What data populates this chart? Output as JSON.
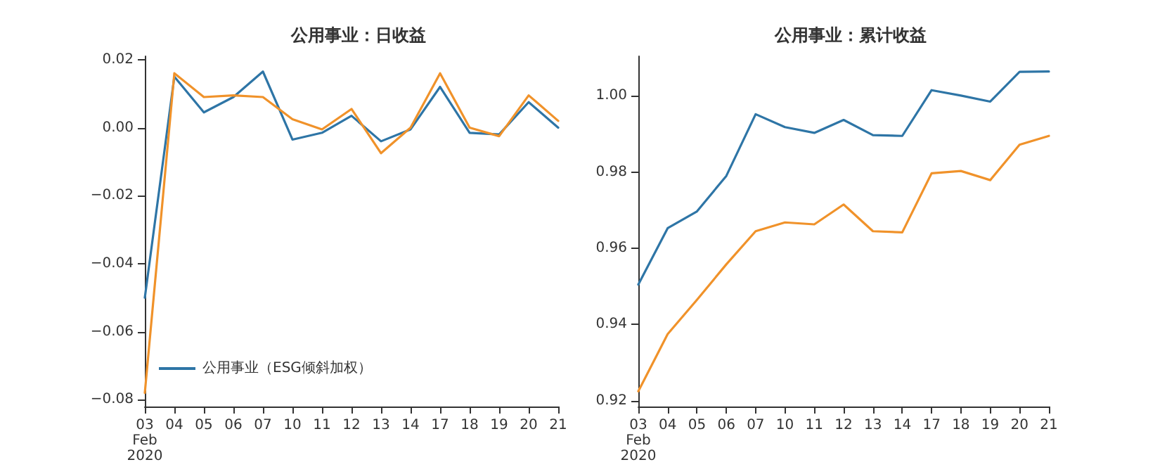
{
  "chart_data": [
    {
      "type": "line",
      "title": "公用事业：日收益",
      "categories": [
        "03\nFeb\n2020",
        "04",
        "05",
        "06",
        "07",
        "10",
        "11",
        "12",
        "13",
        "14",
        "17",
        "18",
        "19",
        "20",
        "21"
      ],
      "series": [
        {
          "name": "公用事业（ESG倾斜加权）",
          "color": "#2e75a6",
          "values": [
            -0.05,
            0.015,
            0.0045,
            0.009,
            0.0165,
            -0.0035,
            -0.0015,
            0.0035,
            -0.004,
            -0.0005,
            0.012,
            -0.0015,
            -0.002,
            0.0075,
            0.0
          ]
        },
        {
          "color": "#f0922a",
          "values": [
            -0.078,
            0.016,
            0.009,
            0.0095,
            0.009,
            0.0025,
            -0.0005,
            0.0055,
            -0.0075,
            0.0,
            0.016,
            0.0,
            -0.0025,
            0.0095,
            0.002
          ]
        }
      ],
      "ylim": [
        -0.082,
        0.021
      ],
      "yticks": [
        {
          "value": -0.08,
          "label": "−0.08"
        },
        {
          "value": -0.06,
          "label": "−0.06"
        },
        {
          "value": -0.04,
          "label": "−0.04"
        },
        {
          "value": -0.02,
          "label": "−0.02"
        },
        {
          "value": 0,
          "label": "0.00"
        },
        {
          "value": 0.02,
          "label": "0.02"
        }
      ],
      "grid": false,
      "legend": "bottom left",
      "marker": "none",
      "line_style": "solid"
    },
    {
      "type": "line",
      "title": "公用事业：累计收益",
      "categories": [
        "03\nFeb\n2020",
        "04",
        "05",
        "06",
        "07",
        "10",
        "11",
        "12",
        "13",
        "14",
        "17",
        "18",
        "19",
        "20",
        "21"
      ],
      "series": [
        {
          "color": "#2e75a6",
          "values": [
            0.9505,
            0.9653,
            0.9697,
            0.979,
            0.9952,
            0.9918,
            0.9903,
            0.9937,
            0.9897,
            0.9895,
            1.0015,
            1.0001,
            0.9985,
            1.0063,
            1.0064
          ]
        },
        {
          "color": "#f0922a",
          "values": [
            0.9225,
            0.9375,
            0.9465,
            0.9558,
            0.9645,
            0.9668,
            0.9663,
            0.9715,
            0.9645,
            0.9642,
            0.9797,
            0.9803,
            0.9779,
            0.9872,
            0.9895
          ]
        }
      ],
      "ylim": [
        0.9185,
        1.0104
      ],
      "yticks": [
        0.92,
        0.94,
        0.96,
        0.98,
        {
          "value": 1.0,
          "label": "1.00"
        }
      ],
      "grid": false,
      "legend": false,
      "marker": "none",
      "line_style": "solid"
    }
  ]
}
